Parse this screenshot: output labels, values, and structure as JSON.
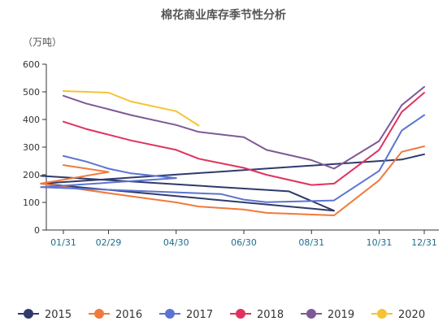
{
  "chart_data": {
    "type": "line",
    "title": "棉花商业库存季节性分析",
    "unit_label": "（万吨）",
    "ylim": [
      0,
      600
    ],
    "yticks": [
      0,
      100,
      200,
      300,
      400,
      500,
      600
    ],
    "grid": false,
    "legend_position": "bottom",
    "x_dates": [
      "01/31",
      "02/15",
      "02/29",
      "03/31",
      "04/15",
      "04/30",
      "05/31",
      "06/15",
      "06/30",
      "07/31",
      "08/15",
      "08/31",
      "09/30",
      "10/15",
      "10/31",
      "11/30",
      "12/31"
    ],
    "x_tick_labels": [
      "01/31",
      "02/29",
      "04/30",
      "06/30",
      "08/31",
      "10/31",
      "12/31"
    ],
    "series": [
      {
        "name": "2015",
        "color": "#2f3a6b",
        "points": [
          [
            "07/15",
            196
          ],
          [
            "08/15",
            140
          ],
          [
            "09/30",
            70
          ],
          [
            "11/15",
            168
          ],
          [
            "11/30",
            255
          ],
          [
            "12/31",
            274
          ]
        ]
      },
      {
        "name": "2016",
        "color": "#f07a3c",
        "points": [
          [
            "01/31",
            235
          ],
          [
            "02/29",
            210
          ],
          [
            "03/15",
            168
          ],
          [
            "03/31",
            122
          ],
          [
            "04/30",
            100
          ],
          [
            "05/31",
            85
          ],
          [
            "06/30",
            74
          ],
          [
            "07/31",
            62
          ],
          [
            "09/30",
            53
          ],
          [
            "10/31",
            180
          ],
          [
            "11/30",
            283
          ],
          [
            "12/31",
            303
          ]
        ]
      },
      {
        "name": "2017",
        "color": "#5b74d1",
        "points": [
          [
            "01/31",
            268
          ],
          [
            "02/15",
            248
          ],
          [
            "02/29",
            222
          ],
          [
            "03/31",
            205
          ],
          [
            "04/30",
            188
          ],
          [
            "05/15",
            155
          ],
          [
            "06/15",
            130
          ],
          [
            "06/30",
            110
          ],
          [
            "07/31",
            101
          ],
          [
            "09/30",
            107
          ],
          [
            "10/31",
            214
          ],
          [
            "11/30",
            360
          ],
          [
            "12/31",
            416
          ]
        ]
      },
      {
        "name": "2018",
        "color": "#e0325f",
        "points": [
          [
            "01/31",
            392
          ],
          [
            "02/15",
            366
          ],
          [
            "02/29",
            345
          ],
          [
            "03/31",
            324
          ],
          [
            "04/30",
            290
          ],
          [
            "05/31",
            258
          ],
          [
            "06/30",
            225
          ],
          [
            "07/31",
            200
          ],
          [
            "08/31",
            163
          ],
          [
            "09/30",
            168
          ],
          [
            "10/31",
            290
          ],
          [
            "11/30",
            427
          ],
          [
            "12/31",
            497
          ]
        ]
      },
      {
        "name": "2019",
        "color": "#7d5a96",
        "points": [
          [
            "01/31",
            486
          ],
          [
            "02/15",
            458
          ],
          [
            "02/29",
            437
          ],
          [
            "03/31",
            416
          ],
          [
            "04/30",
            380
          ],
          [
            "05/31",
            355
          ],
          [
            "06/30",
            336
          ],
          [
            "07/31",
            290
          ],
          [
            "08/31",
            253
          ],
          [
            "09/30",
            222
          ],
          [
            "10/31",
            322
          ],
          [
            "11/30",
            452
          ],
          [
            "12/31",
            518
          ]
        ]
      },
      {
        "name": "2020",
        "color": "#f7c234",
        "points": [
          [
            "01/31",
            503
          ],
          [
            "02/29",
            497
          ],
          [
            "03/31",
            465
          ],
          [
            "04/30",
            430
          ],
          [
            "05/31",
            378
          ]
        ]
      }
    ]
  }
}
